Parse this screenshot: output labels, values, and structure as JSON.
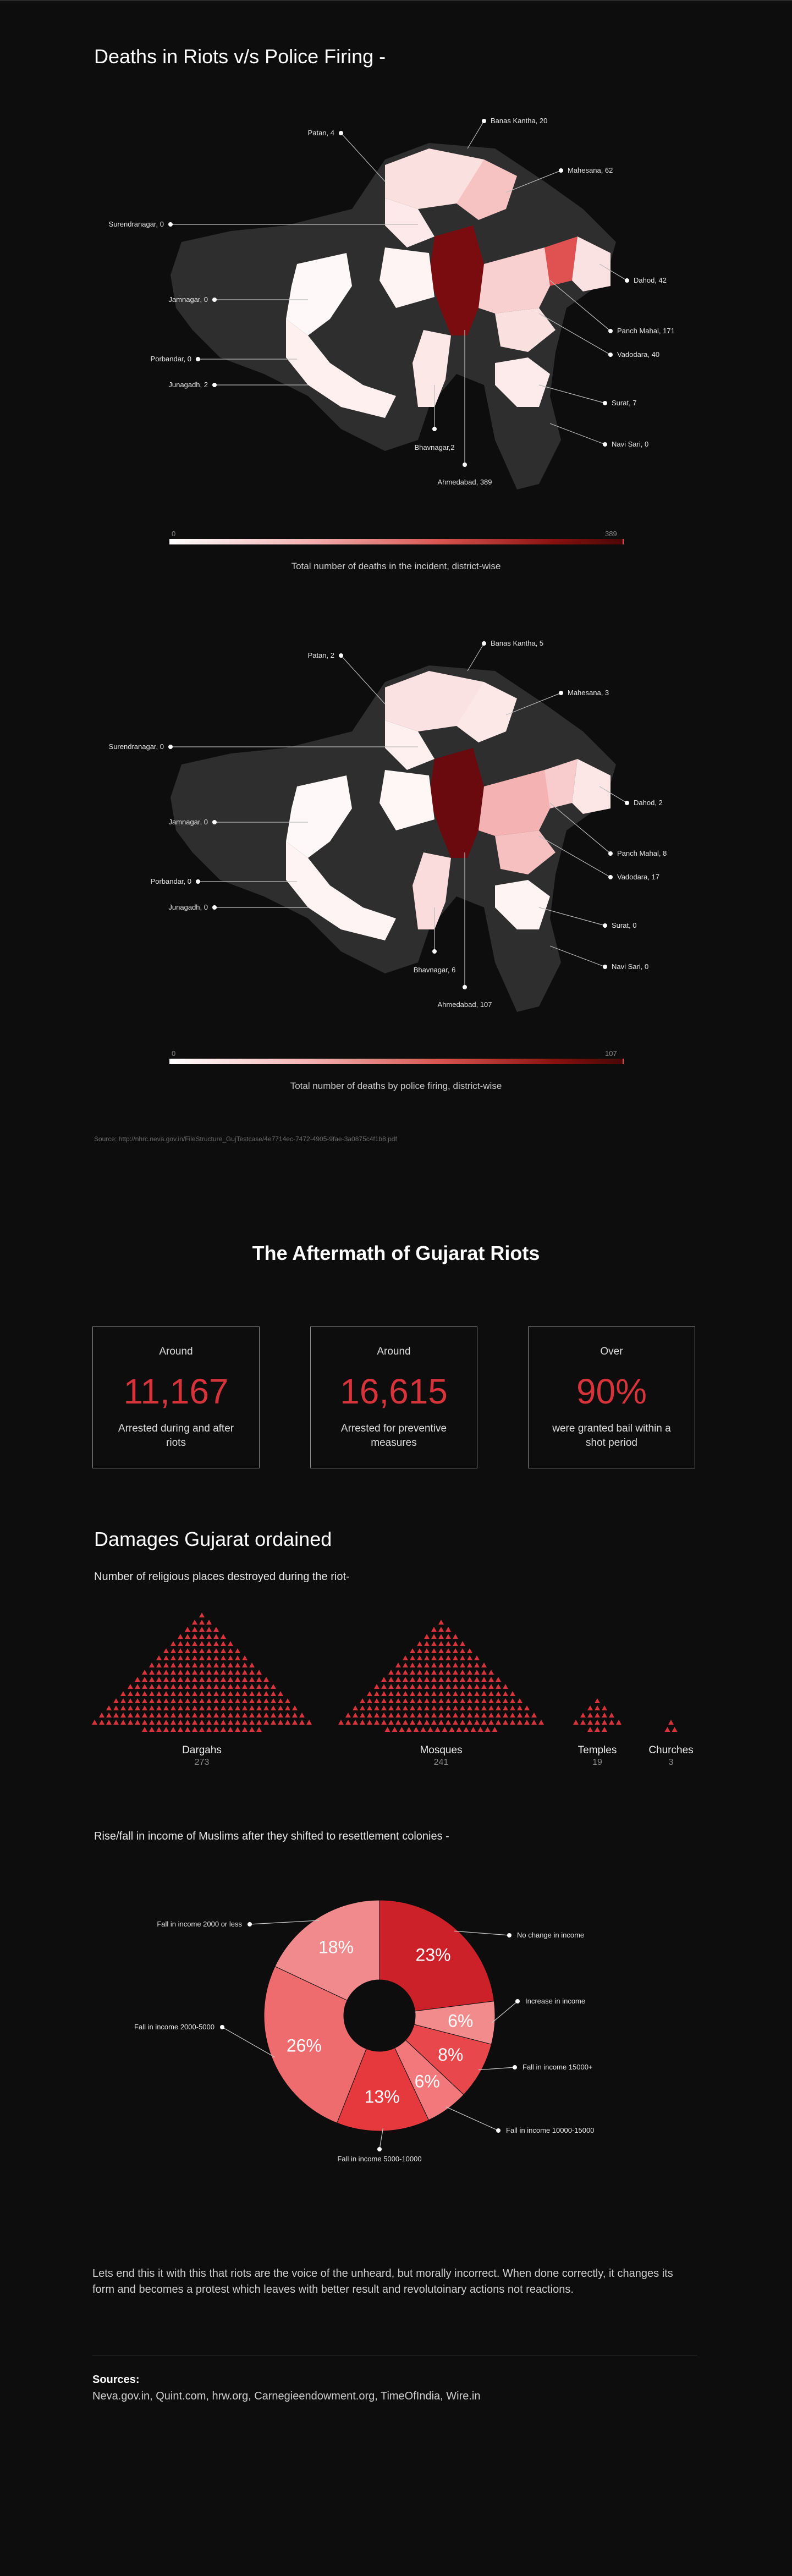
{
  "section1": {
    "title": "Deaths in Riots v/s Police Firing -"
  },
  "map1": {
    "callouts": [
      "Patan, 4",
      "Banas Kantha, 20",
      "Mahesana, 62",
      "Surendranagar, 0",
      "Dahod, 42",
      "Jamnagar, 0",
      "Panch Mahal, 171",
      "Vadodara, 40",
      "Porbandar, 0",
      "Junagadh, 2",
      "Surat, 7",
      "Navi Sari, 0",
      "Bhavnagar,2",
      "Ahmedabad, 389"
    ],
    "legend_min": "0",
    "legend_max": "389",
    "caption": "Total number of deaths in the incident, district-wise"
  },
  "map2": {
    "callouts": [
      "Patan, 2",
      "Banas Kantha, 5",
      "Mahesana, 3",
      "Surendranagar, 0",
      "Dahod, 2",
      "Jamnagar, 0",
      "Panch Mahal, 8",
      "Vadodara, 17",
      "Porbandar, 0",
      "Junagadh, 0",
      "Surat, 0",
      "Navi Sari, 0",
      "Bhavnagar, 6",
      "Ahmedabad, 107"
    ],
    "legend_min": "0",
    "legend_max": "107",
    "caption": "Total number of deaths by police firing, district-wise"
  },
  "source_url": "Source: http://nhrc.neva.gov.in/FileStructure_GujTestcase/4e7714ec-7472-4905-9fae-3a0875c4f1b8.pdf",
  "aftermath": {
    "title": "The Aftermath of Gujarat Riots",
    "stats": [
      {
        "prefix": "Around",
        "value": "11,167",
        "desc": "Arrested during and after riots"
      },
      {
        "prefix": "Around",
        "value": "16,615",
        "desc": "Arrested for preventive measures"
      },
      {
        "prefix": "Over",
        "value": "90%",
        "desc": "were granted bail within a shot period"
      }
    ]
  },
  "damages": {
    "title": "Damages Gujarat ordained",
    "subtitle": "Number of religious places destroyed during the riot-",
    "places": [
      {
        "label": "Dargahs",
        "count": "273",
        "value": 273
      },
      {
        "label": "Mosques",
        "count": "241",
        "value": 241
      },
      {
        "label": "Temples",
        "count": "19",
        "value": 19
      },
      {
        "label": "Churches",
        "count": "3",
        "value": 3
      }
    ],
    "accent": "#d6333b"
  },
  "income": {
    "subtitle": "Rise/fall in income of Muslims after they shifted to resettlement colonies -"
  },
  "chart_data": {
    "type": "pie",
    "series": [
      {
        "label": "No change in income",
        "value": 23,
        "display": "23%",
        "color": "#cc2129"
      },
      {
        "label": "Increase in income",
        "value": 6,
        "display": "6%",
        "color": "#f28b8b"
      },
      {
        "label": "Fall in income 15000+",
        "value": 8,
        "display": "8%",
        "color": "#e8474c"
      },
      {
        "label": "Fall in income 10000-15000",
        "value": 6,
        "display": "6%",
        "color": "#f2787b"
      },
      {
        "label": "Fall in income 5000-10000",
        "value": 13,
        "display": "13%",
        "color": "#e5393e"
      },
      {
        "label": "Fall in income 2000-5000",
        "value": 26,
        "display": "26%",
        "color": "#ee6b6e"
      },
      {
        "label": "Fall in income 2000 or less",
        "value": 18,
        "display": "18%",
        "color": "#f08a8c"
      }
    ]
  },
  "closing_text": "Lets end this it with this that riots are the voice of the unheard, but morally incorrect. When done correctly, it changes its form and becomes a protest which leaves with better result and revolutoinary actions not reactions.",
  "sources": {
    "title": "Sources:",
    "list": "Neva.gov.in, Quint.com, hrw.org, Carnegieendowment.org, TimeOfIndia, Wire.in"
  }
}
